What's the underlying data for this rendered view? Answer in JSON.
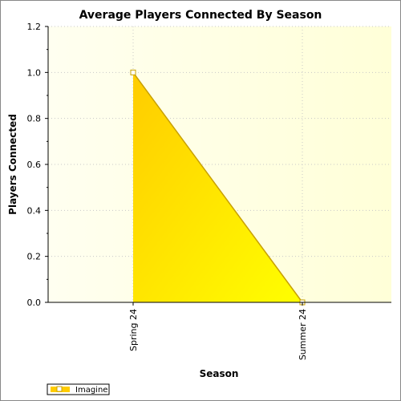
{
  "chart_data": {
    "type": "area",
    "title": "Average Players Connected By Season",
    "xlabel": "Season",
    "ylabel": "Players Connected",
    "categories": [
      "Spring 24",
      "Summer 24"
    ],
    "series": [
      {
        "name": "Imagine",
        "values": [
          1.0,
          0.0
        ]
      }
    ],
    "ylim": [
      0,
      1.2
    ],
    "yticks": [
      "0.0",
      "0.2",
      "0.4",
      "0.6",
      "0.8",
      "1.0",
      "1.2"
    ],
    "grid": true,
    "legend": "bottom-left",
    "colors": {
      "fill_start": "#ffcc00",
      "fill_end": "#ffff00",
      "line": "#c8a000",
      "plot_bg_start": "#fffff0",
      "plot_bg_end": "#ffffd8"
    }
  }
}
